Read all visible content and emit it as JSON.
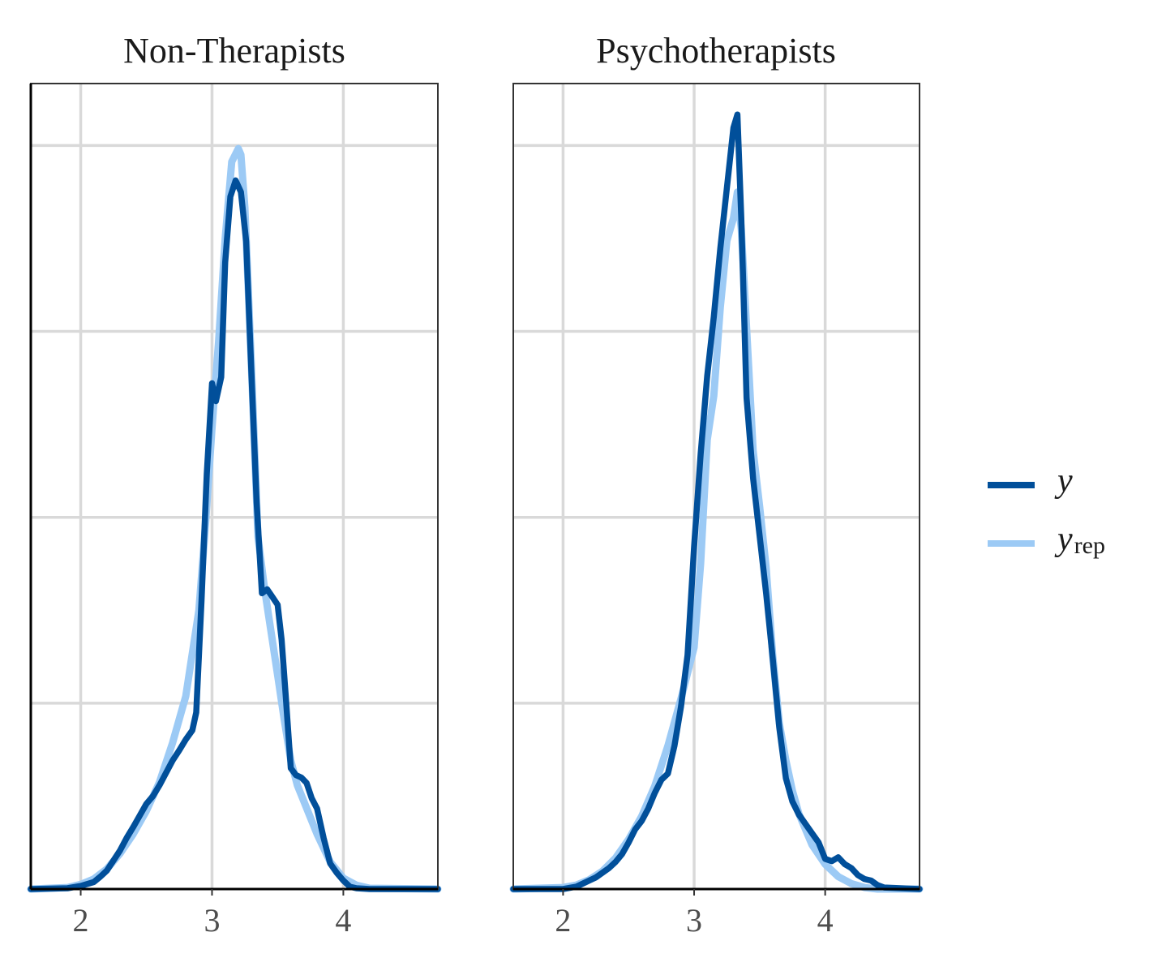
{
  "chart_data": {
    "type": "line",
    "title": "",
    "xlabel": "",
    "ylabel": "",
    "xlim": [
      1.62,
      4.72
    ],
    "ylim": [
      0,
      1.04
    ],
    "x_ticks": [
      "2",
      "3",
      "4"
    ],
    "x_tick_values": [
      2,
      3,
      4
    ],
    "grid": true,
    "legend_position": "right",
    "colors": {
      "y": "#014f9a",
      "y_rep": "#9ccaf5",
      "grid": "#d9d9d9",
      "frame": "#333333"
    },
    "legend": [
      {
        "key": "y",
        "label": "y",
        "sub": ""
      },
      {
        "key": "y_rep",
        "label": "y",
        "sub": "rep"
      }
    ],
    "panels": [
      {
        "title": "Non-Therapists",
        "series": [
          {
            "name": "y_rep",
            "x": [
              1.62,
              1.9,
              2.0,
              2.1,
              2.2,
              2.3,
              2.4,
              2.5,
              2.6,
              2.7,
              2.8,
              2.9,
              2.95,
              3.0,
              3.05,
              3.1,
              3.15,
              3.2,
              3.22,
              3.25,
              3.3,
              3.35,
              3.4,
              3.45,
              3.5,
              3.55,
              3.6,
              3.65,
              3.7,
              3.8,
              3.9,
              4.0,
              4.1,
              4.2,
              4.72
            ],
            "y": [
              0.0,
              0.002,
              0.006,
              0.013,
              0.026,
              0.046,
              0.071,
              0.101,
              0.138,
              0.189,
              0.249,
              0.36,
              0.47,
              0.596,
              0.707,
              0.84,
              0.939,
              0.956,
              0.948,
              0.88,
              0.674,
              0.455,
              0.388,
              0.332,
              0.276,
              0.219,
              0.166,
              0.134,
              0.113,
              0.071,
              0.035,
              0.014,
              0.005,
              0.001,
              0.0
            ]
          },
          {
            "name": "y",
            "x": [
              1.62,
              1.9,
              2.0,
              2.1,
              2.15,
              2.2,
              2.25,
              2.3,
              2.35,
              2.4,
              2.45,
              2.5,
              2.55,
              2.6,
              2.65,
              2.7,
              2.75,
              2.8,
              2.85,
              2.88,
              2.92,
              2.96,
              3.0,
              3.03,
              3.07,
              3.1,
              3.14,
              3.18,
              3.22,
              3.26,
              3.3,
              3.34,
              3.38,
              3.42,
              3.46,
              3.5,
              3.53,
              3.56,
              3.6,
              3.64,
              3.68,
              3.72,
              3.76,
              3.8,
              3.85,
              3.9,
              3.95,
              4.0,
              4.05,
              4.1,
              4.2,
              4.72
            ],
            "y": [
              0.0,
              0.001,
              0.004,
              0.009,
              0.016,
              0.024,
              0.037,
              0.05,
              0.066,
              0.08,
              0.095,
              0.11,
              0.12,
              0.134,
              0.15,
              0.166,
              0.179,
              0.193,
              0.205,
              0.228,
              0.372,
              0.536,
              0.653,
              0.63,
              0.661,
              0.809,
              0.894,
              0.915,
              0.9,
              0.836,
              0.665,
              0.499,
              0.382,
              0.387,
              0.377,
              0.367,
              0.322,
              0.252,
              0.156,
              0.147,
              0.144,
              0.137,
              0.117,
              0.104,
              0.066,
              0.033,
              0.021,
              0.011,
              0.003,
              0.001,
              0.0,
              0.0
            ]
          }
        ]
      },
      {
        "title": "Psychotherapists",
        "series": [
          {
            "name": "y_rep",
            "x": [
              1.62,
              2.0,
              2.1,
              2.2,
              2.3,
              2.4,
              2.5,
              2.6,
              2.7,
              2.8,
              2.9,
              3.0,
              3.05,
              3.1,
              3.15,
              3.2,
              3.25,
              3.3,
              3.33,
              3.36,
              3.4,
              3.45,
              3.5,
              3.55,
              3.6,
              3.65,
              3.7,
              3.75,
              3.8,
              3.9,
              4.0,
              4.1,
              4.2,
              4.3,
              4.4,
              4.72
            ],
            "y": [
              0.0,
              0.002,
              0.005,
              0.012,
              0.023,
              0.04,
              0.064,
              0.094,
              0.133,
              0.185,
              0.246,
              0.312,
              0.421,
              0.58,
              0.637,
              0.751,
              0.837,
              0.866,
              0.9,
              0.852,
              0.725,
              0.566,
              0.494,
              0.414,
              0.301,
              0.214,
              0.166,
              0.127,
              0.097,
              0.057,
              0.032,
              0.016,
              0.007,
              0.002,
              0.0,
              0.0
            ]
          },
          {
            "name": "y",
            "x": [
              1.62,
              2.0,
              2.1,
              2.15,
              2.2,
              2.25,
              2.3,
              2.35,
              2.4,
              2.45,
              2.5,
              2.55,
              2.6,
              2.65,
              2.7,
              2.75,
              2.8,
              2.85,
              2.9,
              2.95,
              3.0,
              3.05,
              3.1,
              3.15,
              3.2,
              3.25,
              3.3,
              3.33,
              3.36,
              3.4,
              3.45,
              3.5,
              3.55,
              3.6,
              3.65,
              3.7,
              3.75,
              3.8,
              3.85,
              3.9,
              3.95,
              4.0,
              4.05,
              4.1,
              4.15,
              4.2,
              4.25,
              4.3,
              4.35,
              4.4,
              4.45,
              4.72
            ],
            "y": [
              0.0,
              0.0,
              0.003,
              0.007,
              0.011,
              0.015,
              0.021,
              0.027,
              0.035,
              0.045,
              0.06,
              0.077,
              0.088,
              0.104,
              0.124,
              0.141,
              0.149,
              0.185,
              0.236,
              0.302,
              0.442,
              0.562,
              0.663,
              0.739,
              0.827,
              0.905,
              0.983,
              1.0,
              0.866,
              0.634,
              0.53,
              0.456,
              0.381,
              0.297,
              0.208,
              0.143,
              0.113,
              0.096,
              0.084,
              0.072,
              0.06,
              0.039,
              0.036,
              0.041,
              0.032,
              0.027,
              0.018,
              0.013,
              0.011,
              0.005,
              0.002,
              0.0
            ]
          }
        ]
      }
    ]
  }
}
